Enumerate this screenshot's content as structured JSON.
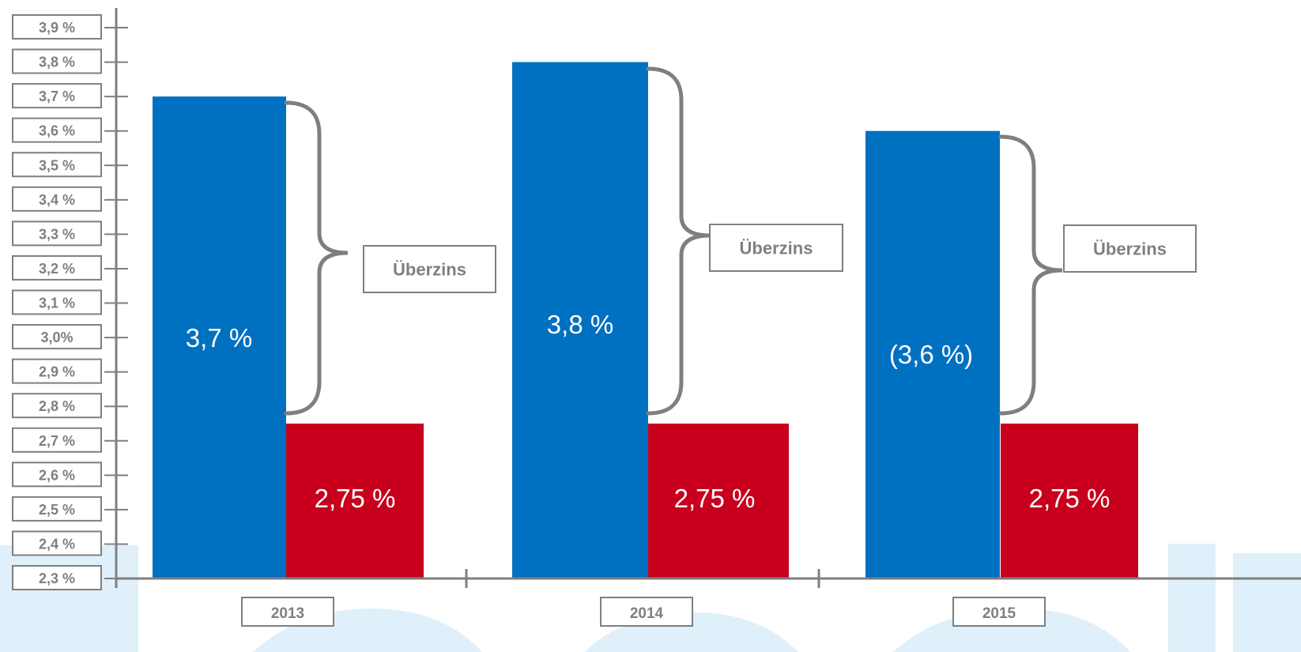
{
  "chart_data": {
    "type": "bar",
    "categories": [
      "2013",
      "2014",
      "2015"
    ],
    "series": [
      {
        "values": [
          3.7,
          3.8,
          3.6
        ],
        "labels": [
          "3,7 %",
          "3,8 %",
          "(3,6 %)"
        ],
        "color": "#0070c0"
      },
      {
        "values": [
          2.75,
          2.75,
          2.75
        ],
        "labels": [
          "2,75 %",
          "2,75 %",
          "2,75 %"
        ],
        "color": "#c8001e"
      }
    ],
    "y_ticks": [
      {
        "value": 3.9,
        "label": "3,9 %"
      },
      {
        "value": 3.8,
        "label": "3,8 %"
      },
      {
        "value": 3.7,
        "label": "3,7 %"
      },
      {
        "value": 3.6,
        "label": "3,6 %"
      },
      {
        "value": 3.5,
        "label": "3,5 %"
      },
      {
        "value": 3.4,
        "label": "3,4 %"
      },
      {
        "value": 3.3,
        "label": "3,3 %"
      },
      {
        "value": 3.2,
        "label": "3,2 %"
      },
      {
        "value": 3.1,
        "label": "3,1 %"
      },
      {
        "value": 3.0,
        "label": "3,0%"
      },
      {
        "value": 2.9,
        "label": "2,9 %"
      },
      {
        "value": 2.8,
        "label": "2,8 %"
      },
      {
        "value": 2.7,
        "label": "2,7 %"
      },
      {
        "value": 2.6,
        "label": "2,6 %"
      },
      {
        "value": 2.5,
        "label": "2,5 %"
      },
      {
        "value": 2.4,
        "label": "2,4 %"
      },
      {
        "value": 2.3,
        "label": "2,3 %"
      }
    ],
    "ylim": [
      2.3,
      3.9
    ],
    "annotations": [
      "Überzins",
      "Überzins",
      "Überzins"
    ],
    "grid": false,
    "legend": "none",
    "colors": {
      "axis": "#7f7f7f",
      "box_border": "#7f7f7f",
      "box_text": "#7f7f7f",
      "watermark": "#dff0fa"
    }
  }
}
